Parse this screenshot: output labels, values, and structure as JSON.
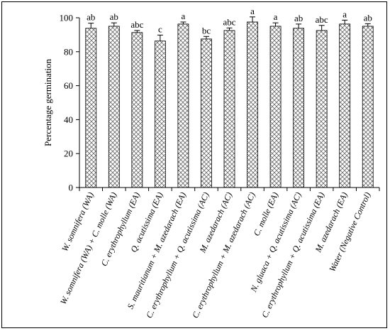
{
  "chart_data": {
    "type": "bar",
    "ylabel": "Percentage germination",
    "xlabel": "",
    "ylim": [
      0,
      100
    ],
    "yticks": [
      0,
      20,
      40,
      60,
      80,
      100
    ],
    "grid": false,
    "legend": "none",
    "bar_pattern": "crosshatch",
    "categories": [
      "W. somnifera (WA)",
      "W. somnifera (WA) + C. molle (WA)",
      "C. erythrophyllum (EA)",
      "Q. acutissima (EA)",
      "S. mauritianum + M. azedarach (EA)",
      "C. erythrophyllum + Q. acutissima (AC)",
      "M. azedarach (AC)",
      "C. erythrophyllum + M. azedarach (AC)",
      "C. molle (EA)",
      "N. gluaca + Q. acutissima (AC)",
      "C. erythrophyllum + Q. acutissima (EA)",
      "M. azedarach (EA)",
      "Water (Negative Control)"
    ],
    "values": [
      93.8,
      95.0,
      91.3,
      86.3,
      96.3,
      87.5,
      92.5,
      97.5,
      95.0,
      93.8,
      92.5,
      96.3,
      95.0
    ],
    "errors": [
      3.0,
      2.0,
      1.2,
      3.5,
      1.2,
      1.5,
      1.5,
      3.0,
      2.0,
      2.5,
      3.0,
      2.3,
      1.5
    ],
    "significance": [
      "ab",
      "ab",
      "abc",
      "c",
      "a",
      "bc",
      "abc",
      "a",
      "a",
      "ab",
      "abc",
      "a",
      "ab"
    ]
  }
}
